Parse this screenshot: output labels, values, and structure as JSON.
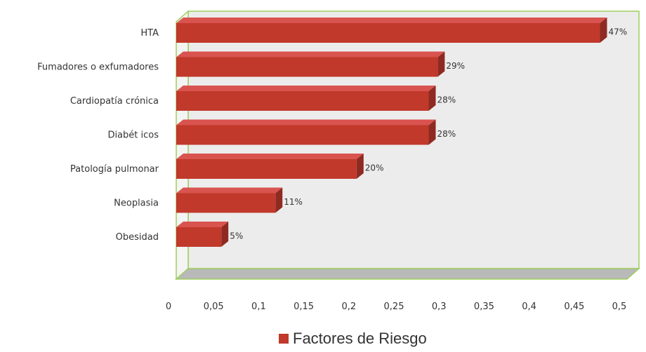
{
  "chart_data": {
    "type": "bar",
    "orientation": "horizontal",
    "style": "3d",
    "categories": [
      "HTA",
      "Fumadores o exfumadores",
      "Cardiopatía crónica",
      "Diabét icos",
      "Patología pulmonar",
      "Neoplasia",
      "Obesidad"
    ],
    "series": [
      {
        "name": "Factores de Riesgo",
        "values": [
          0.47,
          0.29,
          0.28,
          0.28,
          0.2,
          0.11,
          0.05
        ],
        "labels": [
          "47%",
          "29%",
          "28%",
          "28%",
          "20%",
          "11%",
          "5%"
        ],
        "color": "#c0392b"
      }
    ],
    "xlim": [
      0,
      0.5
    ],
    "xticks": [
      "0",
      "0,05",
      "0,1",
      "0,15",
      "0,2",
      "0,25",
      "0,3",
      "0,35",
      "0,4",
      "0,45",
      "0,5"
    ],
    "grid": false,
    "legend_position": "bottom",
    "colors": {
      "bar_front": "#c0392b",
      "bar_top": "#d9534f",
      "bar_side": "#8e2a22",
      "wall": "#ececec",
      "wall_border": "#9fce5f",
      "floor": "#b9b9b9"
    }
  }
}
